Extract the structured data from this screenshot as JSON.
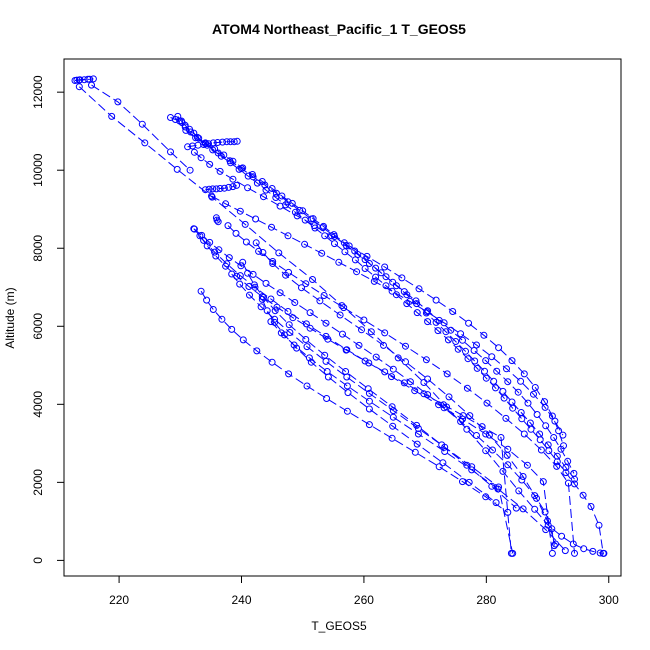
{
  "chart_data": {
    "type": "line",
    "title": "ATOM4 Northeast_Pacific_1 T_GEOS5",
    "xlabel": "T_GEOS5",
    "ylabel": "Altitude (m)",
    "xlim": [
      211,
      302
    ],
    "ylim": [
      -400,
      12850
    ],
    "x_ticks": [
      220,
      240,
      260,
      280,
      300
    ],
    "y_ticks": [
      0,
      2000,
      4000,
      6000,
      8000,
      10000,
      12000
    ],
    "x_tick_labels": [
      "220",
      "240",
      "260",
      "280",
      "300"
    ],
    "y_tick_labels": [
      "0",
      "2000",
      "4000",
      "6000",
      "8000",
      "10000",
      "12000"
    ],
    "line_color": "#0000ff",
    "marker": "open-circle",
    "line_style": "dashed",
    "series": [
      {
        "x": [
          212.8,
          213.5,
          214.3,
          215.2,
          215.8,
          214.9,
          213.6,
          213.1
        ],
        "y": [
          12300,
          12310,
          12320,
          12330,
          12340,
          12330,
          12320,
          12310
        ]
      },
      {
        "x": [
          213.5,
          218.8,
          224.2,
          229.5,
          235.2,
          240.6,
          246.1,
          251.6,
          256.4,
          261.2,
          265.6,
          269.8,
          273.5,
          276.8,
          279.9,
          282.7,
          285.3,
          287.9,
          290.1,
          292.3,
          294.2,
          295.9,
          297.4,
          298.6,
          299.2
        ],
        "y": [
          12140,
          11380,
          10700,
          10020,
          9310,
          8610,
          7880,
          7200,
          6530,
          5860,
          5190,
          4560,
          3930,
          3360,
          2810,
          2280,
          1780,
          1310,
          900,
          620,
          420,
          300,
          230,
          190,
          180
        ]
      },
      {
        "x": [
          215.5,
          219.8,
          223.8,
          228.4,
          231.6
        ],
        "y": [
          12180,
          11750,
          11180,
          10470,
          10000
        ]
      },
      {
        "x": [
          228.4,
          229.2,
          229.9,
          230.3,
          230.8,
          231.5,
          232.2,
          233.0,
          234.1,
          235.3,
          236.7,
          238.2,
          239.6,
          241.1,
          242.6,
          244.0,
          245.6,
          247.2,
          248.8,
          250.4,
          252.0,
          253.6,
          255.2,
          256.9,
          258.6,
          260.2,
          261.9,
          263.6,
          265.3,
          267.0,
          268.7,
          270.4,
          272.1,
          273.8,
          275.4,
          277.0,
          278.5,
          280.0,
          281.5,
          282.9,
          284.3,
          285.8,
          287.3,
          288.8,
          290.2,
          291.6,
          293.0,
          294.4,
          295.8,
          297.1,
          298.4,
          299.1
        ],
        "y": [
          11350,
          11300,
          11260,
          11220,
          11150,
          11050,
          10950,
          10820,
          10680,
          10520,
          10360,
          10190,
          10020,
          9850,
          9670,
          9490,
          9300,
          9110,
          8920,
          8720,
          8520,
          8320,
          8120,
          7910,
          7700,
          7480,
          7260,
          7040,
          6810,
          6580,
          6350,
          6120,
          5890,
          5650,
          5410,
          5170,
          4920,
          4670,
          4420,
          4160,
          3900,
          3630,
          3360,
          3090,
          2810,
          2530,
          2250,
          1960,
          1670,
          1380,
          900,
          180
        ]
      },
      {
        "x": [
          229.6,
          230.2,
          230.8,
          231.7,
          232.8,
          234.1,
          235.6,
          237.1,
          238.6,
          240.2,
          241.8,
          243.4,
          245.0,
          246.6,
          248.3,
          250.0,
          251.7,
          253.4,
          255.1,
          256.8,
          258.5,
          260.2,
          261.9,
          263.6,
          265.3,
          267.0,
          268.6,
          270.2,
          271.8,
          273.4,
          275.0,
          276.6,
          278.1,
          279.7,
          281.2,
          282.7,
          284.2,
          285.7,
          287.2,
          288.7,
          290.1,
          291.6,
          293.0,
          294.4
        ],
        "y": [
          11380,
          11260,
          11110,
          10980,
          10840,
          10700,
          10550,
          10390,
          10230,
          10060,
          9890,
          9710,
          9530,
          9340,
          9150,
          8960,
          8760,
          8560,
          8350,
          8140,
          7930,
          7710,
          7490,
          7270,
          7040,
          6810,
          6580,
          6340,
          6100,
          5860,
          5610,
          5360,
          5110,
          4850,
          4590,
          4330,
          4060,
          3790,
          3520,
          3240,
          2960,
          2670,
          2380,
          2080
        ]
      },
      {
        "x": [
          230.9,
          232.5,
          234.4,
          236.2,
          238.1,
          240.0,
          241.9,
          243.8,
          245.7,
          247.6,
          249.5,
          251.4,
          253.3,
          255.2,
          257.1,
          259.0,
          260.9,
          262.8,
          264.7,
          266.6,
          268.5,
          270.4,
          272.3,
          274.2,
          276.1,
          278.0,
          279.9,
          281.7,
          283.5,
          285.2,
          286.8,
          288.3,
          289.7,
          291.0,
          292.2,
          293.3,
          294.3
        ],
        "y": [
          11020,
          10830,
          10640,
          10440,
          10240,
          10040,
          9830,
          9620,
          9410,
          9190,
          8970,
          8750,
          8530,
          8300,
          8070,
          7840,
          7610,
          7370,
          7130,
          6890,
          6650,
          6400,
          6150,
          5900,
          5640,
          5380,
          5120,
          4850,
          4580,
          4310,
          4030,
          3740,
          3450,
          3150,
          2850,
          2540,
          2230
        ]
      },
      {
        "x": [
          231.2,
          232.0,
          232.9,
          233.8,
          234.6,
          235.4,
          236.1,
          236.9,
          237.6,
          238.2,
          238.8,
          239.3
        ],
        "y": [
          10600,
          10620,
          10640,
          10660,
          10680,
          10700,
          10710,
          10720,
          10730,
          10730,
          10730,
          10740
        ]
      },
      {
        "x": [
          232.3,
          233.4,
          234.8,
          236.5,
          238.6,
          241.0,
          243.6,
          246.3,
          249.1,
          251.9,
          254.7,
          257.6,
          260.5,
          263.4,
          266.2,
          269.0,
          271.8,
          274.5,
          277.1,
          279.6,
          282.0,
          284.2,
          286.2,
          288.0,
          289.5,
          290.8,
          291.8,
          292.6
        ],
        "y": [
          10460,
          10320,
          10150,
          9970,
          9770,
          9550,
          9320,
          9080,
          8830,
          8580,
          8320,
          8060,
          7790,
          7520,
          7240,
          6960,
          6670,
          6380,
          6080,
          5770,
          5450,
          5120,
          4780,
          4430,
          4070,
          3700,
          3320,
          2940
        ]
      },
      {
        "x": [
          234.1,
          234.7,
          235.3,
          235.9,
          236.5,
          237.2,
          237.9,
          238.6,
          239.2
        ],
        "y": [
          9500,
          9510,
          9520,
          9520,
          9530,
          9540,
          9560,
          9580,
          9610
        ]
      },
      {
        "x": [
          235.1,
          237.4,
          239.8,
          242.3,
          244.9,
          247.6,
          250.3,
          253.1,
          255.9,
          258.8,
          261.7,
          264.6,
          267.5,
          270.3,
          273.1,
          275.8,
          278.4,
          280.9,
          283.3,
          285.6,
          287.7,
          289.6,
          291.2,
          292.5
        ],
        "y": [
          9340,
          9140,
          8950,
          8750,
          8540,
          8320,
          8100,
          7870,
          7640,
          7400,
          7150,
          6900,
          6640,
          6370,
          6090,
          5810,
          5520,
          5220,
          4910,
          4590,
          4260,
          3920,
          3570,
          3210
        ]
      },
      {
        "x": [
          235.9,
          236.0,
          236.2
        ],
        "y": [
          8780,
          8720,
          8680
        ]
      },
      {
        "x": [
          232.3,
          233.5,
          234.8,
          236.3,
          238.0,
          239.9,
          241.9,
          244.0,
          246.3,
          248.7,
          251.2,
          253.8,
          256.5,
          259.2,
          262.0,
          264.8,
          267.6,
          270.4,
          273.1,
          275.8,
          278.4,
          281.0,
          283.5,
          285.8,
          287.9,
          289.6,
          290.7,
          291.1
        ],
        "y": [
          8490,
          8330,
          8150,
          7960,
          7760,
          7550,
          7330,
          7100,
          6860,
          6610,
          6350,
          6080,
          5800,
          5510,
          5210,
          4900,
          4580,
          4250,
          3910,
          3560,
          3200,
          2830,
          2450,
          2060,
          1660,
          1240,
          810,
          380
        ]
      },
      {
        "x": [
          233.2,
          234.4,
          235.8,
          237.4,
          239.2,
          241.2,
          243.4,
          245.8,
          248.4,
          251.2,
          254.1,
          257.1,
          260.2,
          263.4,
          266.6,
          269.8,
          273.0,
          276.2,
          279.3,
          282.4,
          284.1
        ],
        "y": [
          8320,
          8060,
          7800,
          7540,
          7280,
          7020,
          6760,
          6490,
          6220,
          5950,
          5670,
          5390,
          5110,
          4830,
          4550,
          4270,
          3990,
          3710,
          3430,
          3150,
          180
        ]
      },
      {
        "x": [
          237.8,
          239.1,
          240.8,
          242.8,
          245.1,
          247.7,
          250.5,
          253.5,
          256.7,
          260.0,
          263.4,
          266.8,
          270.2,
          273.6,
          276.9,
          280.1,
          283.2,
          286.2,
          289.0,
          291.5,
          293.4,
          294.4
        ],
        "y": [
          8580,
          8380,
          8160,
          7920,
          7660,
          7380,
          7090,
          6790,
          6480,
          6160,
          5830,
          5490,
          5140,
          4780,
          4410,
          4030,
          3640,
          3240,
          2830,
          2410,
          1980,
          180
        ]
      },
      {
        "x": [
          232.2,
          233.8,
          235.6,
          237.6,
          239.8,
          242.2,
          244.8,
          247.6,
          250.6,
          253.8,
          257.2,
          260.8,
          264.5,
          268.3,
          272.2,
          276.1,
          279.9,
          283.5,
          286.7,
          289.3,
          290.8
        ],
        "y": [
          8500,
          8200,
          7900,
          7600,
          7300,
          7000,
          6700,
          6380,
          6060,
          5740,
          5400,
          5060,
          4710,
          4350,
          3990,
          3620,
          3240,
          2850,
          2440,
          2020,
          180
        ]
      },
      {
        "x": [
          242.4,
          243.5,
          245.1,
          247.2,
          249.8,
          252.8,
          256.1,
          259.6,
          263.2,
          266.8,
          270.4,
          273.9,
          277.3,
          280.5,
          283.4,
          286.0,
          288.2,
          290.0,
          291.3
        ],
        "y": [
          8140,
          7890,
          7610,
          7310,
          6990,
          6650,
          6290,
          5910,
          5510,
          5090,
          4650,
          4190,
          3710,
          3210,
          2690,
          2150,
          1590,
          1010,
          420
        ]
      },
      {
        "x": [
          240.2,
          241.0,
          242.1,
          243.6,
          245.5,
          247.8,
          250.5,
          253.6,
          257.0,
          260.7,
          264.6,
          268.6,
          272.7,
          276.8,
          280.9,
          284.9
        ],
        "y": [
          7640,
          7360,
          7060,
          6740,
          6400,
          6040,
          5660,
          5260,
          4840,
          4400,
          3940,
          3460,
          2960,
          2440,
          1900,
          1340
        ]
      },
      {
        "x": [
          238.4,
          239.7,
          241.3,
          243.2,
          245.4,
          247.9,
          250.7,
          253.8,
          257.2,
          260.9,
          264.8,
          268.9,
          273.2,
          277.6,
          282.0,
          284.3
        ],
        "y": [
          7340,
          7080,
          6800,
          6500,
          6180,
          5840,
          5480,
          5100,
          4700,
          4280,
          3840,
          3380,
          2900,
          2400,
          1880,
          180
        ]
      },
      {
        "x": [
          233.4,
          234.3,
          235.4,
          236.8,
          238.4,
          240.3,
          242.5,
          245.0,
          247.7,
          250.7,
          253.9,
          257.3,
          260.9,
          264.6,
          268.4,
          272.3,
          276.1,
          279.9,
          283.5
        ],
        "y": [
          6900,
          6670,
          6430,
          6180,
          5920,
          5650,
          5370,
          5080,
          4780,
          4470,
          4150,
          3820,
          3480,
          3130,
          2770,
          2400,
          2020,
          1630,
          1230
        ]
      },
      {
        "x": [
          243.4,
          244.2,
          245.4,
          247.0,
          249.0,
          251.4,
          254.2,
          257.4,
          260.9,
          264.7,
          268.7,
          272.9,
          277.2,
          281.6
        ],
        "y": [
          6690,
          6400,
          6100,
          5780,
          5440,
          5080,
          4700,
          4300,
          3880,
          3440,
          2980,
          2500,
          2000,
          1480
        ]
      },
      {
        "x": [
          244.8,
          246.5,
          248.6,
          251.1,
          254.0,
          257.3,
          260.9,
          264.8,
          268.9,
          273.2,
          277.6,
          281.9,
          286.0,
          289.7,
          292.9
        ],
        "y": [
          6120,
          5830,
          5520,
          5190,
          4840,
          4470,
          4080,
          3670,
          3240,
          2790,
          2320,
          1830,
          1320,
          790,
          250
        ]
      }
    ]
  }
}
